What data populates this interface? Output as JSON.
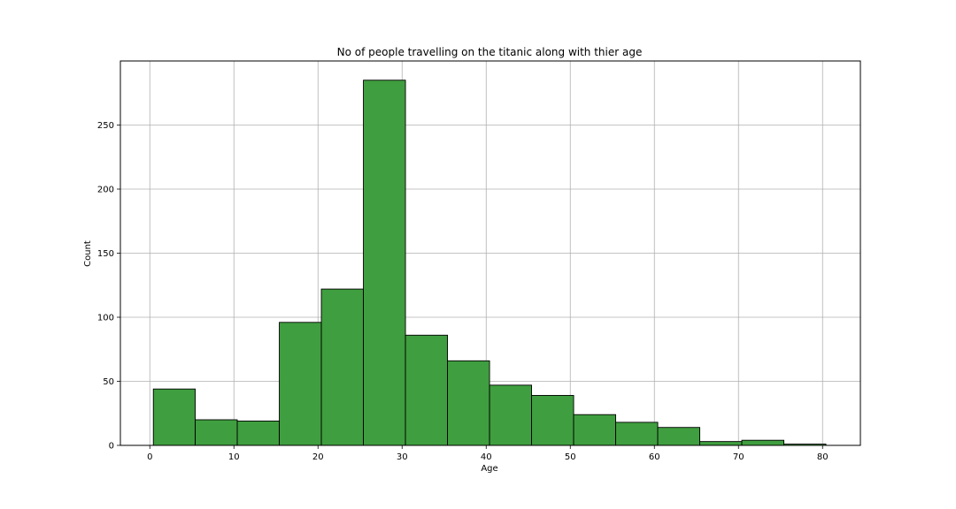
{
  "chart_data": {
    "type": "histogram",
    "title": "No of people travelling on the titanic along with thier age",
    "xlabel": "Age",
    "ylabel": "Count",
    "xlim": [
      -3.5,
      84.5
    ],
    "ylim": [
      0,
      300
    ],
    "x_ticks": [
      0,
      10,
      20,
      30,
      40,
      50,
      60,
      70,
      80
    ],
    "y_ticks": [
      0,
      50,
      100,
      150,
      200,
      250
    ],
    "grid": true,
    "bar_color": "#3f9e3f",
    "edge_color": "#000000",
    "bins": [
      {
        "start": 0.42,
        "end": 5.4,
        "count": 44
      },
      {
        "start": 5.4,
        "end": 10.4,
        "count": 20
      },
      {
        "start": 10.4,
        "end": 15.4,
        "count": 19
      },
      {
        "start": 15.4,
        "end": 20.4,
        "count": 96
      },
      {
        "start": 20.4,
        "end": 25.4,
        "count": 122
      },
      {
        "start": 25.4,
        "end": 30.4,
        "count": 285
      },
      {
        "start": 30.4,
        "end": 35.4,
        "count": 86
      },
      {
        "start": 35.4,
        "end": 40.4,
        "count": 66
      },
      {
        "start": 40.4,
        "end": 45.4,
        "count": 47
      },
      {
        "start": 45.4,
        "end": 50.4,
        "count": 39
      },
      {
        "start": 50.4,
        "end": 55.4,
        "count": 24
      },
      {
        "start": 55.4,
        "end": 60.4,
        "count": 18
      },
      {
        "start": 60.4,
        "end": 65.4,
        "count": 14
      },
      {
        "start": 65.4,
        "end": 70.4,
        "count": 3
      },
      {
        "start": 70.4,
        "end": 75.4,
        "count": 4
      },
      {
        "start": 75.4,
        "end": 80.4,
        "count": 1
      }
    ]
  }
}
